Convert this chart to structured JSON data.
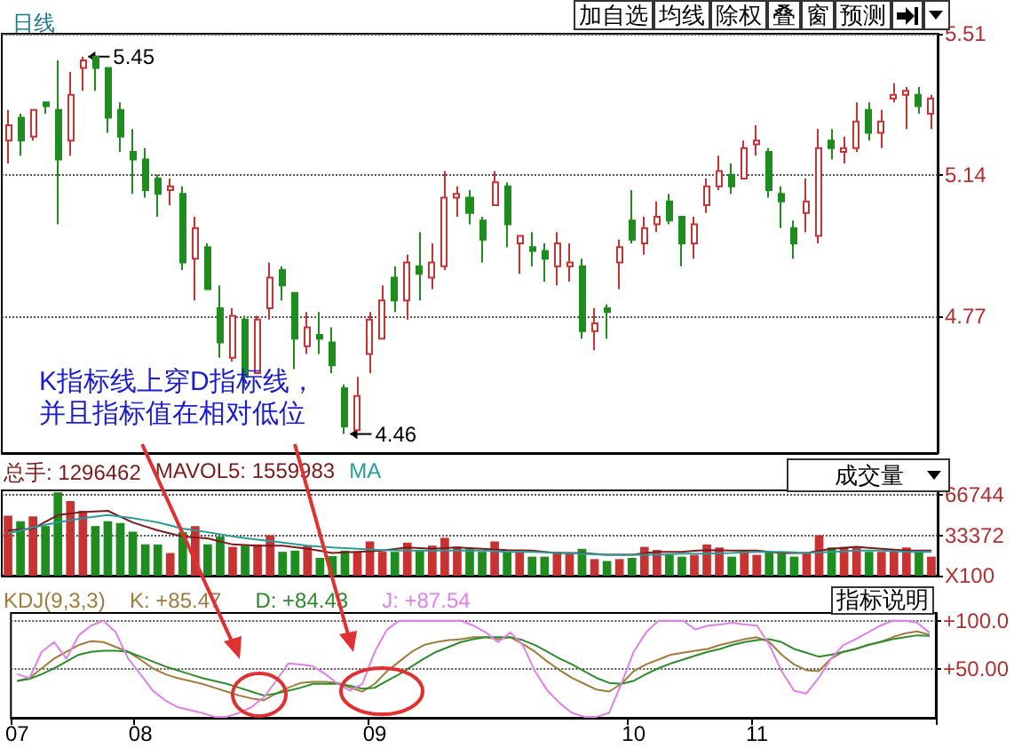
{
  "chart_data": [
    {
      "type": "candlestick",
      "title": "日线",
      "ylim": [
        4.41,
        5.51
      ],
      "yticks": [
        4.77,
        5.14,
        5.51
      ],
      "grid": "y",
      "tick_labels": "y",
      "categories": [
        null,
        null,
        null,
        null,
        null,
        null,
        null,
        null,
        null,
        null,
        null,
        null,
        null,
        null,
        null,
        null,
        null,
        null,
        null,
        null,
        null,
        null,
        null,
        null,
        null,
        null,
        null,
        null,
        null,
        null,
        null,
        null,
        null,
        null,
        null,
        null,
        null,
        null,
        null,
        null,
        null,
        null,
        null,
        null,
        null,
        null,
        null,
        null,
        null,
        null,
        null,
        null,
        null,
        null,
        null,
        null,
        null,
        null,
        null,
        null,
        null,
        null,
        null,
        null,
        null,
        null,
        null,
        null,
        null,
        null,
        null,
        null,
        null,
        null,
        null
      ],
      "ohlc": [
        [
          5.23,
          5.31,
          5.17,
          5.27
        ],
        [
          5.29,
          5.3,
          5.19,
          5.23
        ],
        [
          5.24,
          5.31,
          5.23,
          5.31
        ],
        [
          5.33,
          5.33,
          5.3,
          5.32
        ],
        [
          5.31,
          5.44,
          5.01,
          5.18
        ],
        [
          5.23,
          5.41,
          5.19,
          5.35
        ],
        [
          5.42,
          5.45,
          5.36,
          5.44
        ],
        [
          5.45,
          5.45,
          5.36,
          5.42
        ],
        [
          5.42,
          5.42,
          5.25,
          5.29
        ],
        [
          5.31,
          5.33,
          5.2,
          5.24
        ],
        [
          5.2,
          5.26,
          5.09,
          5.18
        ],
        [
          5.18,
          5.21,
          5.08,
          5.1
        ],
        [
          5.13,
          5.14,
          5.03,
          5.09
        ],
        [
          5.1,
          5.13,
          5.06,
          5.11
        ],
        [
          5.09,
          5.11,
          4.89,
          4.91
        ],
        [
          4.92,
          5.03,
          4.81,
          5.0
        ],
        [
          4.95,
          4.96,
          4.84,
          4.84
        ],
        [
          4.79,
          4.85,
          4.66,
          4.7
        ],
        [
          4.66,
          4.79,
          4.65,
          4.77
        ],
        [
          4.76,
          4.77,
          4.58,
          4.61
        ],
        [
          4.62,
          4.77,
          4.62,
          4.76
        ],
        [
          4.79,
          4.91,
          4.76,
          4.87
        ],
        [
          4.89,
          4.9,
          4.81,
          4.85
        ],
        [
          4.83,
          4.83,
          4.63,
          4.71
        ],
        [
          4.69,
          4.78,
          4.67,
          4.74
        ],
        [
          4.72,
          4.78,
          4.67,
          4.71
        ],
        [
          4.7,
          4.74,
          4.62,
          4.64
        ],
        [
          4.58,
          4.59,
          4.46,
          4.48
        ],
        [
          4.47,
          4.61,
          4.47,
          4.56
        ],
        [
          4.67,
          4.78,
          4.62,
          4.76
        ],
        [
          4.71,
          4.85,
          4.71,
          4.81
        ],
        [
          4.87,
          4.9,
          4.78,
          4.81
        ],
        [
          4.81,
          4.93,
          4.76,
          4.91
        ],
        [
          4.9,
          4.99,
          4.81,
          4.88
        ],
        [
          4.87,
          4.96,
          4.84,
          4.91
        ],
        [
          4.9,
          5.15,
          4.89,
          5.08
        ],
        [
          5.08,
          5.11,
          5.03,
          5.09
        ],
        [
          5.08,
          5.1,
          5.01,
          5.04
        ],
        [
          5.02,
          5.03,
          4.91,
          4.97
        ],
        [
          5.06,
          5.15,
          5.06,
          5.12
        ],
        [
          5.11,
          5.12,
          4.95,
          5.01
        ],
        [
          4.96,
          4.98,
          4.88,
          4.98
        ],
        [
          4.95,
          4.99,
          4.9,
          4.94
        ],
        [
          4.94,
          4.96,
          4.86,
          4.92
        ],
        [
          4.9,
          4.99,
          4.85,
          4.96
        ],
        [
          4.9,
          4.96,
          4.86,
          4.91
        ],
        [
          4.9,
          4.92,
          4.71,
          4.73
        ],
        [
          4.73,
          4.79,
          4.68,
          4.75
        ],
        [
          4.79,
          4.8,
          4.71,
          4.78
        ],
        [
          4.91,
          4.97,
          4.84,
          4.95
        ],
        [
          5.02,
          5.1,
          4.96,
          4.97
        ],
        [
          4.96,
          5.03,
          4.93,
          5.0
        ],
        [
          5.01,
          5.07,
          4.99,
          5.03
        ],
        [
          5.07,
          5.09,
          5.01,
          5.02
        ],
        [
          5.03,
          5.03,
          4.9,
          4.96
        ],
        [
          4.96,
          5.03,
          4.92,
          5.01
        ],
        [
          5.06,
          5.13,
          5.04,
          5.11
        ],
        [
          5.11,
          5.19,
          5.1,
          5.15
        ],
        [
          5.14,
          5.17,
          5.09,
          5.11
        ],
        [
          5.13,
          5.23,
          5.13,
          5.21
        ],
        [
          5.22,
          5.27,
          5.19,
          5.23
        ],
        [
          5.2,
          5.21,
          5.08,
          5.1
        ],
        [
          5.09,
          5.11,
          5.0,
          5.07
        ],
        [
          5.0,
          5.02,
          4.92,
          4.96
        ],
        [
          5.04,
          5.13,
          4.99,
          5.07
        ],
        [
          4.98,
          5.26,
          4.96,
          5.21
        ],
        [
          5.23,
          5.26,
          5.18,
          5.21
        ],
        [
          5.2,
          5.24,
          5.17,
          5.21
        ],
        [
          5.21,
          5.33,
          5.2,
          5.28
        ],
        [
          5.31,
          5.33,
          5.23,
          5.25
        ],
        [
          5.25,
          5.31,
          5.21,
          5.28
        ],
        [
          5.34,
          5.38,
          5.33,
          5.35
        ],
        [
          5.35,
          5.37,
          5.26,
          5.36
        ],
        [
          5.35,
          5.37,
          5.3,
          5.32
        ],
        [
          5.3,
          5.35,
          5.26,
          5.34
        ]
      ],
      "colors": [
        "#c83232",
        "#1e8c1e",
        "#c83232",
        "#1e8c1e",
        "#1e8c1e",
        "#c83232",
        "#c83232",
        "#1e8c1e",
        "#1e8c1e",
        "#1e8c1e",
        "#1e8c1e",
        "#1e8c1e",
        "#1e8c1e",
        "#c83232",
        "#1e8c1e",
        "#c83232",
        "#1e8c1e",
        "#1e8c1e",
        "#c83232",
        "#1e8c1e",
        "#c83232",
        "#c83232",
        "#1e8c1e",
        "#1e8c1e",
        "#c83232",
        "#1e8c1e",
        "#1e8c1e",
        "#1e8c1e",
        "#c83232",
        "#c83232",
        "#c83232",
        "#1e8c1e",
        "#c83232",
        "#1e8c1e",
        "#c83232",
        "#c83232",
        "#c83232",
        "#1e8c1e",
        "#1e8c1e",
        "#c83232",
        "#1e8c1e",
        "#c83232",
        "#1e8c1e",
        "#1e8c1e",
        "#c83232",
        "#c83232",
        "#1e8c1e",
        "#c83232",
        "#1e8c1e",
        "#c83232",
        "#1e8c1e",
        "#c83232",
        "#c83232",
        "#1e8c1e",
        "#1e8c1e",
        "#c83232",
        "#c83232",
        "#c83232",
        "#1e8c1e",
        "#c83232",
        "#c83232",
        "#1e8c1e",
        "#1e8c1e",
        "#1e8c1e",
        "#c83232",
        "#c83232",
        "#1e8c1e",
        "#c83232",
        "#c83232",
        "#1e8c1e",
        "#c83232",
        "#c83232",
        "#c83232",
        "#1e8c1e",
        "#c83232"
      ],
      "annotations": [
        "K指标线上穿D指标线，并且指标值在相对低位",
        "加自选",
        "均线",
        "除权",
        "叠",
        "窗",
        "预测",
        "5.45",
        "4.46"
      ]
    },
    {
      "type": "bar",
      "ylim": [
        0,
        70500
      ],
      "yticks": [
        {
          "value": 0,
          "label": "X100"
        },
        33372,
        66744
      ],
      "grid": "y",
      "tick_labels": "y",
      "marker": "none",
      "categories": [
        null,
        null,
        null,
        null,
        null,
        null,
        null,
        null,
        null,
        null,
        null,
        null,
        null,
        null,
        null,
        null,
        null,
        null,
        null,
        null,
        null,
        null,
        null,
        null,
        null,
        null,
        null,
        null,
        null,
        null,
        null,
        null,
        null,
        null,
        null,
        null,
        null,
        null,
        null,
        null,
        null,
        null,
        null,
        null,
        null,
        null,
        null,
        null,
        null,
        null,
        null,
        null,
        null,
        null,
        null,
        null,
        null,
        null,
        null,
        null,
        null,
        null,
        null,
        null,
        null,
        null,
        null,
        null,
        null,
        null,
        null,
        null,
        null,
        null,
        null
      ],
      "series": [
        {
          "type": "bar",
          "values": [
            49500,
            45000,
            49000,
            41000,
            68800,
            61700,
            53600,
            41000,
            45000,
            43500,
            36400,
            25800,
            25800,
            18700,
            35900,
            41000,
            25800,
            32400,
            23800,
            24800,
            25800,
            33400,
            19700,
            20700,
            24800,
            14700,
            16200,
            20700,
            19700,
            28300,
            19700,
            19700,
            27300,
            20700,
            24800,
            31300,
            23800,
            22200,
            19700,
            28300,
            19700,
            19700,
            15700,
            15700,
            19700,
            18200,
            22200,
            13700,
            12100,
            13700,
            14700,
            23800,
            21200,
            17200,
            15700,
            17200,
            25800,
            23300,
            15700,
            21200,
            17200,
            19700,
            18200,
            15700,
            18200,
            33400,
            23300,
            23800,
            23300,
            19700,
            19700,
            21200,
            23300,
            19700,
            15700
          ],
          "colors": [
            "#c83232",
            "#1e8c1e",
            "#c83232",
            "#1e8c1e",
            "#1e8c1e",
            "#c83232",
            "#c83232",
            "#1e8c1e",
            "#1e8c1e",
            "#1e8c1e",
            "#1e8c1e",
            "#1e8c1e",
            "#1e8c1e",
            "#c83232",
            "#1e8c1e",
            "#c83232",
            "#1e8c1e",
            "#1e8c1e",
            "#c83232",
            "#1e8c1e",
            "#c83232",
            "#c83232",
            "#1e8c1e",
            "#1e8c1e",
            "#c83232",
            "#1e8c1e",
            "#1e8c1e",
            "#1e8c1e",
            "#c83232",
            "#c83232",
            "#c83232",
            "#1e8c1e",
            "#c83232",
            "#1e8c1e",
            "#c83232",
            "#c83232",
            "#c83232",
            "#1e8c1e",
            "#1e8c1e",
            "#c83232",
            "#1e8c1e",
            "#c83232",
            "#1e8c1e",
            "#1e8c1e",
            "#c83232",
            "#c83232",
            "#1e8c1e",
            "#c83232",
            "#1e8c1e",
            "#c83232",
            "#1e8c1e",
            "#c83232",
            "#c83232",
            "#1e8c1e",
            "#1e8c1e",
            "#c83232",
            "#c83232",
            "#c83232",
            "#1e8c1e",
            "#c83232",
            "#c83232",
            "#1e8c1e",
            "#1e8c1e",
            "#1e8c1e",
            "#c83232",
            "#c83232",
            "#1e8c1e",
            "#c83232",
            "#c83232",
            "#1e8c1e",
            "#c83232",
            "#c83232",
            "#c83232",
            "#1e8c1e",
            "#c83232"
          ]
        },
        {
          "type": "line",
          "color": "#7a1a1a",
          "values": [
            37400,
            38200,
            38900,
            44500,
            50100,
            51400,
            52600,
            53100,
            53600,
            48800,
            44000,
            40700,
            37400,
            34900,
            32400,
            31600,
            30800,
            28300,
            25800,
            25300,
            24800,
            24800,
            24800,
            23500,
            22200,
            20500,
            18700,
            19200,
            19700,
            20200,
            20700,
            22000,
            23300,
            22800,
            22200,
            22800,
            23300,
            22800,
            22200,
            21700,
            21200,
            21000,
            20700,
            19700,
            18700,
            18700,
            18700,
            18000,
            17200,
            17200,
            17200,
            18500,
            19700,
            19700,
            19700,
            20500,
            21200,
            21000,
            20700,
            20700,
            20700,
            19700,
            18700,
            18700,
            18700,
            20500,
            22200,
            23000,
            23800,
            23000,
            22200,
            21500,
            20700,
            20700,
            20700
          ]
        },
        {
          "type": "line",
          "color": "#2a9a9a",
          "values": [
            34900,
            37400,
            39900,
            42000,
            44000,
            45800,
            47500,
            48800,
            50100,
            48800,
            47500,
            45800,
            44000,
            41500,
            38900,
            37400,
            35900,
            34200,
            32400,
            31100,
            29800,
            28600,
            27300,
            26100,
            24800,
            24100,
            23300,
            22800,
            22200,
            21700,
            21200,
            21000,
            20700,
            20700,
            20700,
            20700,
            20700,
            20700,
            20700,
            20200,
            19700,
            19700,
            19700,
            19200,
            18700,
            18500,
            18200,
            17700,
            17200,
            17200,
            17200,
            17200,
            17200,
            17700,
            18200,
            18200,
            18200,
            18500,
            18700,
            19200,
            19700,
            19700,
            19700,
            19200,
            18700,
            19200,
            19700,
            20200,
            20700,
            20700,
            20700,
            20200,
            19700,
            19700,
            19700
          ]
        }
      ],
      "annotations": [
        "总手: 1296462",
        "MAVOL5: 1559983",
        "MA",
        "成交量"
      ]
    },
    {
      "type": "line",
      "ylim": [
        0,
        108
      ],
      "yticks": [
        {
          "value": 50,
          "label": "+50.00"
        },
        {
          "value": 100,
          "label": "+100.0"
        }
      ],
      "grid": "y",
      "legend": "top left",
      "legend_title": "KDJ(9,3,3)",
      "marker": "none",
      "line_style": "solid",
      "categories": [
        "07",
        null,
        null,
        null,
        null,
        null,
        null,
        null,
        null,
        null,
        "08",
        null,
        null,
        null,
        null,
        null,
        null,
        null,
        null,
        null,
        null,
        null,
        null,
        null,
        null,
        null,
        null,
        null,
        null,
        "09",
        null,
        null,
        null,
        null,
        null,
        null,
        null,
        null,
        null,
        null,
        null,
        null,
        null,
        null,
        null,
        null,
        null,
        null,
        null,
        null,
        "10",
        null,
        null,
        null,
        null,
        null,
        null,
        null,
        null,
        null,
        "11",
        null,
        null,
        null,
        null,
        null,
        null,
        null,
        null,
        null,
        null,
        null,
        null,
        null,
        null
      ],
      "series": [
        {
          "name": "K: +85.47",
          "color": "#a07c3c",
          "values": [
            38,
            41,
            51,
            61,
            68,
            75,
            79,
            78,
            73,
            68,
            60,
            51,
            45,
            41,
            38,
            35,
            31,
            27,
            23,
            20,
            18,
            25,
            31,
            36,
            37,
            37,
            36,
            31,
            27,
            35,
            48,
            58,
            68,
            75,
            78,
            80,
            81,
            83,
            83,
            81,
            83,
            76,
            68,
            58,
            49,
            41,
            35,
            29,
            27,
            35,
            48,
            55,
            60,
            65,
            67,
            69,
            71,
            75,
            78,
            81,
            83,
            78,
            65,
            55,
            49,
            48,
            61,
            68,
            71,
            75,
            78,
            83,
            87,
            89,
            85.47
          ]
        },
        {
          "name": "D: +84.43",
          "color": "#2e8b2e",
          "values": [
            38,
            40,
            45,
            51,
            58,
            65,
            68,
            69,
            69,
            68,
            63,
            58,
            53,
            49,
            45,
            41,
            38,
            35,
            31,
            27,
            23,
            25,
            28,
            31,
            35,
            35,
            35,
            33,
            30,
            31,
            38,
            45,
            53,
            61,
            68,
            73,
            78,
            81,
            83,
            83,
            83,
            80,
            75,
            68,
            61,
            55,
            48,
            41,
            36,
            35,
            38,
            45,
            51,
            56,
            60,
            64,
            68,
            71,
            75,
            78,
            80,
            81,
            78,
            71,
            67,
            63,
            65,
            68,
            71,
            75,
            78,
            81,
            83,
            85,
            84.43
          ]
        },
        {
          "name": "J: +87.54",
          "color": "#e080e8",
          "values": [
            45,
            41,
            68,
            78,
            61,
            85,
            95,
            100,
            88,
            61,
            45,
            28,
            18,
            11,
            8,
            5,
            1,
            1,
            5,
            11,
            21,
            38,
            56,
            55,
            53,
            45,
            35,
            28,
            35,
            68,
            91,
            100,
            100,
            100,
            100,
            100,
            100,
            95,
            88,
            78,
            88,
            75,
            48,
            28,
            15,
            5,
            1,
            1,
            5,
            35,
            68,
            88,
            100,
            100,
            100,
            91,
            95,
            96,
            98,
            96,
            95,
            75,
            48,
            28,
            25,
            41,
            61,
            75,
            81,
            88,
            95,
            100,
            100,
            98,
            87.54
          ]
        }
      ],
      "annotations": [
        "指标说明"
      ]
    }
  ]
}
